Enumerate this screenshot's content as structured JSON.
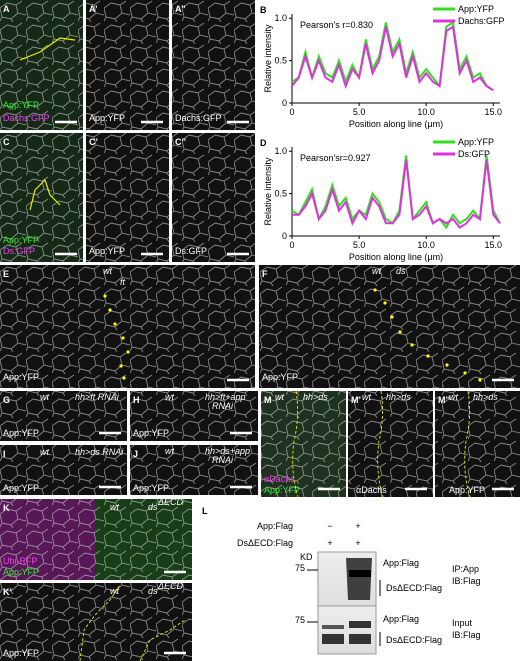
{
  "image_panels": [
    {
      "letter": "A",
      "labels": [
        "App:YFP",
        "Dachs:GFP"
      ]
    },
    {
      "letter": "A’",
      "labels": [
        "App:YFP"
      ]
    },
    {
      "letter": "A’’",
      "labels": [
        "Dachs:GFP"
      ]
    },
    {
      "letter": "C",
      "labels": [
        "App:YFP",
        "Ds:GFP"
      ]
    },
    {
      "letter": "C’",
      "labels": [
        "App:YFP"
      ]
    },
    {
      "letter": "C’’",
      "labels": [
        "Ds:GFP"
      ]
    },
    {
      "letter": "E",
      "labels": [
        "wt",
        "ft",
        "App:YFP"
      ]
    },
    {
      "letter": "F",
      "labels": [
        "wt",
        "ds",
        "App:YFP"
      ]
    },
    {
      "letter": "G",
      "labels": [
        "wt",
        "hh>ft RNAi",
        "App:YFP"
      ]
    },
    {
      "letter": "H",
      "labels": [
        "wt",
        "hh>ft+app",
        "RNAi",
        "App:YFP"
      ]
    },
    {
      "letter": "I",
      "labels": [
        "wt",
        "hh>ds RNAi",
        "App:YFP"
      ]
    },
    {
      "letter": "J",
      "labels": [
        "wt",
        "hh>ds+app",
        "RNAi",
        "App:YFP"
      ]
    },
    {
      "letter": "M",
      "labels": [
        "wt",
        "hh>ds",
        "αDachs",
        "App:YFP"
      ]
    },
    {
      "letter": "M’",
      "labels": [
        "wt",
        "hh>ds",
        "αDachs"
      ]
    },
    {
      "letter": "M’’",
      "labels": [
        "wt",
        "hh>ds",
        "App:YFP"
      ]
    },
    {
      "letter": "K",
      "labels": [
        "wt",
        "ds",
        "ΔECD",
        "Ubi-RFP",
        "App:YFP"
      ]
    },
    {
      "letter": "K’",
      "labels": [
        "wt",
        "ds",
        "ΔECD",
        "App:YFP"
      ]
    }
  ],
  "chart_data": [
    {
      "type": "line",
      "panel": "B",
      "title": "Pearson's r=0.830",
      "y_label": "Relative intensity",
      "x_label": "Position along line (μm)",
      "xlim": [
        0,
        15.5
      ],
      "ylim": [
        0,
        1.05
      ],
      "xticks": [
        0,
        {
          "value": 5,
          "label": "5.0"
        },
        {
          "value": 10,
          "label": "10.0"
        },
        {
          "value": 15,
          "label": "15.0"
        }
      ],
      "yticks": [
        0,
        0.5,
        {
          "value": 1,
          "label": "1.0"
        }
      ],
      "x": [
        0,
        0.5,
        1,
        1.5,
        2,
        2.5,
        3,
        3.5,
        4,
        4.5,
        5,
        5.5,
        6,
        6.5,
        7,
        7.5,
        8,
        8.5,
        9,
        9.5,
        10,
        10.5,
        11,
        11.5,
        12,
        12.5,
        13,
        13.5,
        14,
        14.5,
        15
      ],
      "series": [
        {
          "name": "App:YFP",
          "color": "#33dd22",
          "values": [
            0.25,
            0.3,
            0.6,
            0.3,
            0.55,
            0.35,
            0.3,
            0.5,
            0.25,
            0.45,
            0.3,
            0.75,
            0.4,
            0.55,
            0.95,
            0.6,
            0.75,
            0.35,
            0.6,
            0.3,
            0.4,
            0.3,
            0.2,
            0.9,
            0.95,
            0.4,
            0.55,
            0.3,
            0.35,
            0.2,
            0.15
          ]
        },
        {
          "name": "Dachs:GFP",
          "color": "#dd33dd",
          "values": [
            0.2,
            0.3,
            0.55,
            0.3,
            0.5,
            0.3,
            0.25,
            0.45,
            0.2,
            0.4,
            0.3,
            0.7,
            0.35,
            0.5,
            0.9,
            0.55,
            0.7,
            0.3,
            0.55,
            0.25,
            0.35,
            0.25,
            0.2,
            0.85,
            0.9,
            0.35,
            0.5,
            0.25,
            0.3,
            0.2,
            0.15
          ]
        }
      ]
    },
    {
      "type": "line",
      "panel": "D",
      "title": "Pearson'sr=0.927",
      "y_label": "Relative intensity",
      "x_label": "Position along line (μm)",
      "xlim": [
        0,
        15.5
      ],
      "ylim": [
        0,
        1.05
      ],
      "xticks": [
        0,
        {
          "value": 5,
          "label": "5.0"
        },
        {
          "value": 10,
          "label": "10.0"
        },
        {
          "value": 15,
          "label": "15.0"
        }
      ],
      "yticks": [
        0,
        0.5,
        {
          "value": 1,
          "label": "1.0"
        }
      ],
      "x": [
        0,
        0.5,
        1,
        1.5,
        2,
        2.5,
        3,
        3.5,
        4,
        4.5,
        5,
        5.5,
        6,
        6.5,
        7,
        7.5,
        8,
        8.5,
        9,
        9.5,
        10,
        10.5,
        11,
        11.5,
        12,
        12.5,
        13,
        13.5,
        14,
        14.5,
        15,
        15.5
      ],
      "series": [
        {
          "name": "App:YFP",
          "color": "#33dd22",
          "values": [
            0.3,
            0.25,
            0.4,
            0.55,
            0.2,
            0.35,
            0.6,
            0.35,
            0.45,
            0.2,
            0.3,
            0.25,
            0.5,
            0.4,
            0.2,
            0.15,
            0.3,
            0.95,
            0.2,
            0.3,
            0.4,
            0.15,
            0.2,
            0.1,
            0.25,
            0.15,
            0.2,
            0.3,
            0.2,
            0.95,
            0.3,
            0.15
          ]
        },
        {
          "name": "Ds:GFP",
          "color": "#dd33dd",
          "values": [
            0.25,
            0.25,
            0.35,
            0.5,
            0.2,
            0.3,
            0.55,
            0.3,
            0.4,
            0.15,
            0.3,
            0.2,
            0.45,
            0.35,
            0.15,
            0.15,
            0.25,
            0.9,
            0.2,
            0.25,
            0.35,
            0.15,
            0.2,
            0.15,
            0.2,
            0.1,
            0.15,
            0.25,
            0.2,
            0.9,
            0.25,
            0.15
          ]
        }
      ]
    }
  ],
  "blot": {
    "letter": "L",
    "row1": "App:Flag",
    "row1_lane1": "−",
    "row1_lane2": "+",
    "row2": "DsΔECD:Flag",
    "row2_lane1": "+",
    "row2_lane2": "+",
    "kd": "KD",
    "ip_marker": "75",
    "ip_band1": "App:Flag",
    "ip_band2": "DsΔECD:Flag",
    "ip_label1": "IP:App",
    "ip_label2": "IB:Flag",
    "input_marker": "75",
    "input_band1": "App:Flag",
    "input_band2": "DsΔECD:Flag",
    "input_label1": "Input",
    "input_label2": "IB:Flag"
  }
}
